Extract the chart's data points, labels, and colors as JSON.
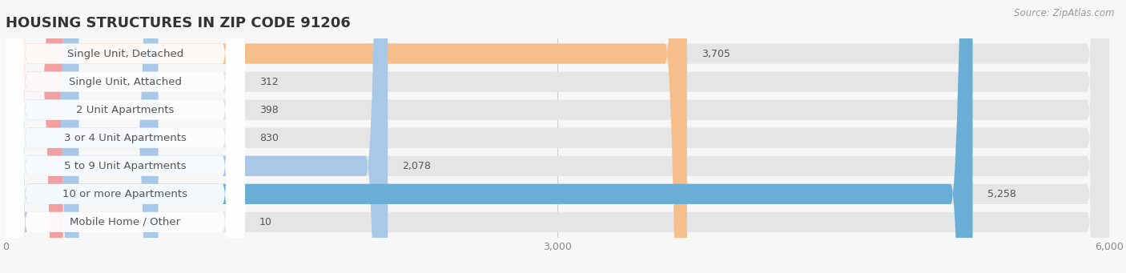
{
  "title": "HOUSING STRUCTURES IN ZIP CODE 91206",
  "source": "Source: ZipAtlas.com",
  "categories": [
    "Single Unit, Detached",
    "Single Unit, Attached",
    "2 Unit Apartments",
    "3 or 4 Unit Apartments",
    "5 to 9 Unit Apartments",
    "10 or more Apartments",
    "Mobile Home / Other"
  ],
  "values": [
    3705,
    312,
    398,
    830,
    2078,
    5258,
    10
  ],
  "bar_colors": [
    "#f5be8a",
    "#f0a0a0",
    "#a8c8e8",
    "#a8c8e8",
    "#a8c8e8",
    "#6aaed6",
    "#d0b8d8"
  ],
  "background_color": "#f7f7f7",
  "bar_bg_color": "#e5e5e5",
  "xlim": [
    0,
    6000
  ],
  "xticks": [
    0,
    3000,
    6000
  ],
  "title_fontsize": 13,
  "label_fontsize": 9.5,
  "value_fontsize": 9,
  "bar_height": 0.72
}
